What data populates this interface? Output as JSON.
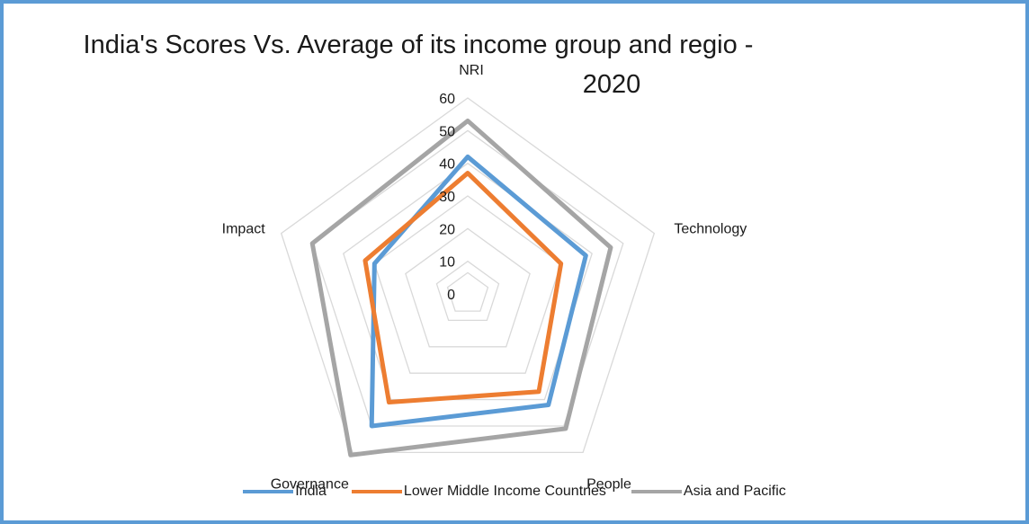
{
  "chart_data": {
    "type": "radar",
    "title_lines": [
      "India's Scores Vs. Average of its income group and regio -",
      "2020"
    ],
    "axes": [
      "NRI",
      "Technology",
      "People",
      "Governance",
      "Impact"
    ],
    "rlim": [
      0,
      60
    ],
    "ticks": [
      "0",
      "10",
      "20",
      "30",
      "40",
      "50",
      "60"
    ],
    "tick_values": [
      0,
      10,
      20,
      30,
      40,
      50,
      60
    ],
    "grid": true,
    "legend_position": "bottom",
    "series": [
      {
        "name": "India",
        "color": "#5b9bd5",
        "values": [
          42,
          38,
          42,
          50,
          30
        ]
      },
      {
        "name": "Lower Middle Income Countries",
        "color": "#ed7d31",
        "values": [
          37,
          30,
          37,
          41,
          33
        ]
      },
      {
        "name": "Asia and Pacific",
        "color": "#a5a5a5",
        "values": [
          53,
          46,
          51,
          61,
          50
        ]
      }
    ]
  }
}
